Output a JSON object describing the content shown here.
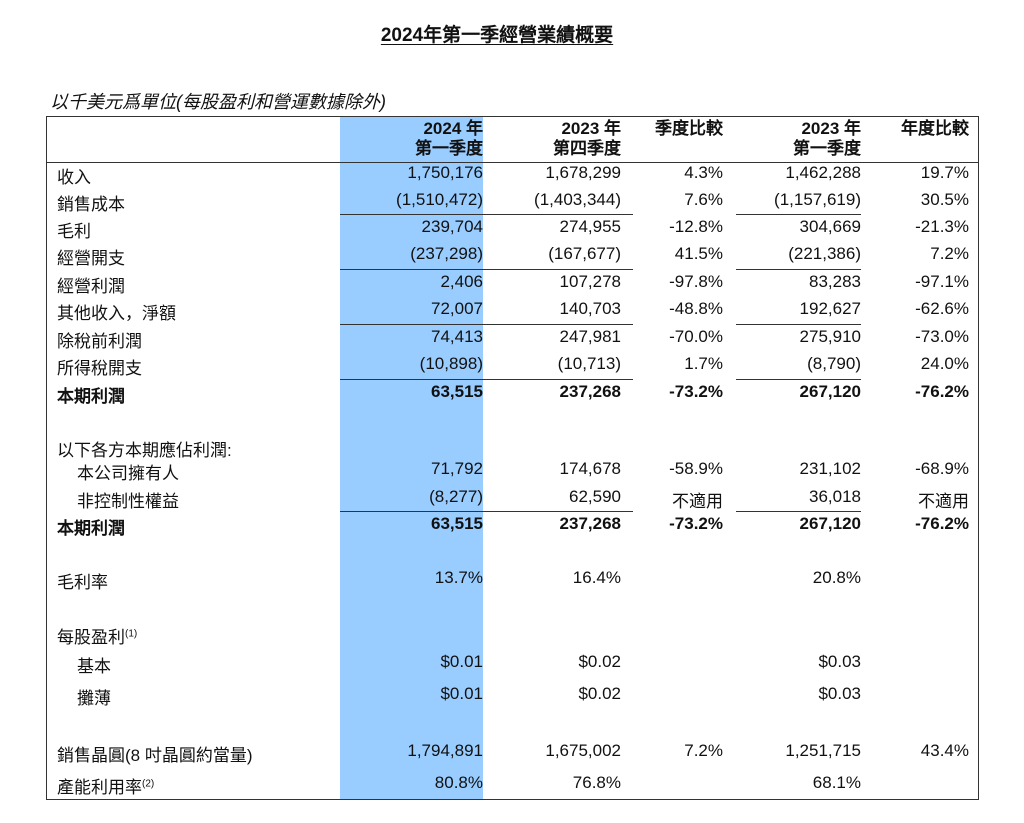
{
  "title": "2024年第一季經營業績概要",
  "subtitle": "以千美元爲單位(每股盈利和營運數據除外)",
  "highlight_color": "#99ccff",
  "headers": [
    {
      "line1": "2024 年",
      "line2": "第一季度"
    },
    {
      "line1": "2023 年",
      "line2": "第四季度"
    },
    {
      "line1": "季度比較",
      "line2": ""
    },
    {
      "line1": "2023 年",
      "line2": "第一季度"
    },
    {
      "line1": "年度比較",
      "line2": ""
    }
  ],
  "rows": [
    {
      "label": "收入",
      "values": [
        "1,750,176",
        "1,678,299",
        "4.3%",
        "1,462,288",
        "19.7%"
      ]
    },
    {
      "label": "銷售成本",
      "values": [
        "(1,510,472)",
        "(1,403,344)",
        "7.6%",
        "(1,157,619)",
        "30.5%"
      ]
    },
    {
      "label": "毛利",
      "values": [
        "239,704",
        "274,955",
        "-12.8%",
        "304,669",
        "-21.3%"
      ],
      "underline_above": true
    },
    {
      "label": "經營開支",
      "values": [
        "(237,298)",
        "(167,677)",
        "41.5%",
        "(221,386)",
        "7.2%"
      ]
    },
    {
      "label": "經營利潤",
      "values": [
        "2,406",
        "107,278",
        "-97.8%",
        "83,283",
        "-97.1%"
      ],
      "underline_above": true
    },
    {
      "label": "其他收入，淨額",
      "values": [
        "72,007",
        "140,703",
        "-48.8%",
        "192,627",
        "-62.6%"
      ]
    },
    {
      "label": "除稅前利潤",
      "values": [
        "74,413",
        "247,981",
        "-70.0%",
        "275,910",
        "-73.0%"
      ],
      "underline_above": true
    },
    {
      "label": "所得稅開支",
      "values": [
        "(10,898)",
        "(10,713)",
        "1.7%",
        "(8,790)",
        "24.0%"
      ]
    },
    {
      "label": "本期利潤",
      "values": [
        "63,515",
        "237,268",
        "-73.2%",
        "267,120",
        "-76.2%"
      ],
      "underline_above": true,
      "bold": true
    },
    {
      "label": "以下各方本期應佔利潤:",
      "values": [
        "",
        "",
        "",
        "",
        ""
      ]
    },
    {
      "label": "本公司擁有人",
      "values": [
        "71,792",
        "174,678",
        "-58.9%",
        "231,102",
        "-68.9%"
      ],
      "indent": true
    },
    {
      "label": "非控制性權益",
      "values": [
        "(8,277)",
        "62,590",
        "不適用",
        "36,018",
        "不適用"
      ],
      "indent": true
    },
    {
      "label": "本期利潤",
      "values": [
        "63,515",
        "237,268",
        "-73.2%",
        "267,120",
        "-76.2%"
      ],
      "underline_above": true,
      "bold": true
    },
    {
      "label": "毛利率",
      "values": [
        "13.7%",
        "16.4%",
        "",
        "20.8%",
        ""
      ]
    },
    {
      "label": "每股盈利",
      "sup": "(1)",
      "values": [
        "",
        "",
        "",
        "",
        ""
      ]
    },
    {
      "label": "基本",
      "values": [
        "$0.01",
        "$0.02",
        "",
        "$0.03",
        ""
      ],
      "indent": true
    },
    {
      "label": "攤薄",
      "values": [
        "$0.01",
        "$0.02",
        "",
        "$0.03",
        ""
      ],
      "indent": true
    },
    {
      "label": "銷售晶圓(8 吋晶圓約當量)",
      "values": [
        "1,794,891",
        "1,675,002",
        "7.2%",
        "1,251,715",
        "43.4%"
      ]
    },
    {
      "label": "產能利用率",
      "sup": "(2)",
      "values": [
        "80.8%",
        "76.8%",
        "",
        "68.1%",
        ""
      ]
    }
  ]
}
